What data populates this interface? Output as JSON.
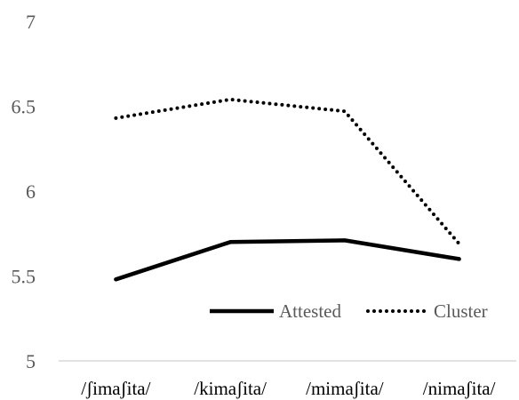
{
  "chart_data": {
    "type": "line",
    "categories": [
      "/ʃimaʃita/",
      "/kimaʃita/",
      "/mimaʃita/",
      "/nimaʃita/"
    ],
    "ylim": [
      5,
      7
    ],
    "yticks": [
      5,
      5.5,
      6,
      6.5,
      7
    ],
    "ytick_labels": [
      "5",
      "5.5",
      "6",
      "6.5",
      "7"
    ],
    "grid": false,
    "legend_position": "lower-right",
    "series": [
      {
        "name": "Attested",
        "values": [
          5.48,
          5.7,
          5.71,
          5.6
        ],
        "style": "solid",
        "color": "#000000"
      },
      {
        "name": "Cluster",
        "values": [
          6.43,
          6.54,
          6.47,
          5.69
        ],
        "style": "dotted",
        "color": "#000000"
      }
    ],
    "title": "",
    "xlabel": "",
    "ylabel": ""
  },
  "colors": {
    "axis_line": "#d9d9d9",
    "tick_text": "#595959"
  }
}
